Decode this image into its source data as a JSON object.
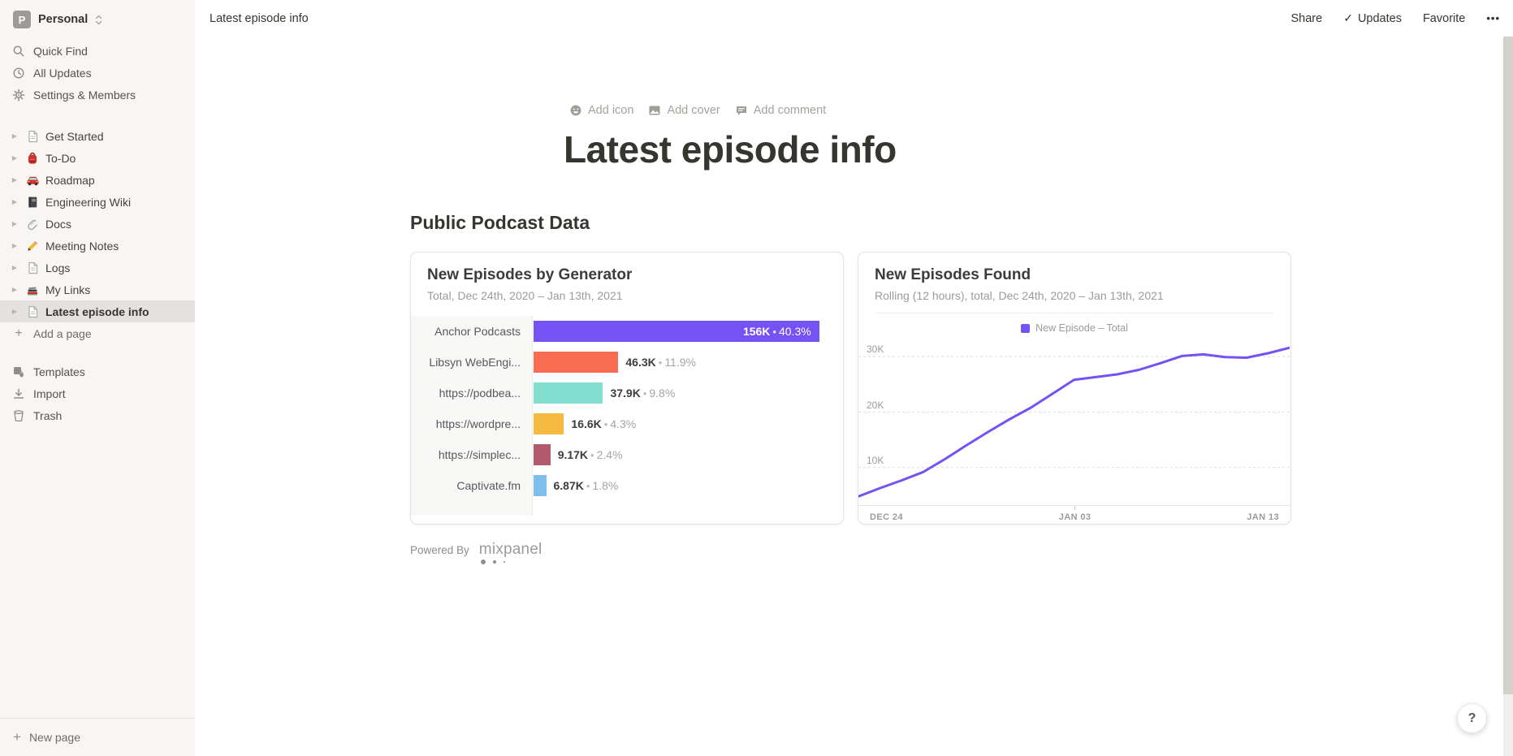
{
  "workspace": {
    "name": "Personal",
    "initial": "P"
  },
  "sidebar": {
    "top_items": [
      {
        "label": "Quick Find",
        "icon": "search-icon"
      },
      {
        "label": "All Updates",
        "icon": "clock-icon"
      },
      {
        "label": "Settings & Members",
        "icon": "gear-icon"
      }
    ],
    "pages": [
      {
        "label": "Get Started",
        "icon": "page-icon"
      },
      {
        "label": "To-Do",
        "icon": "backpack-icon"
      },
      {
        "label": "Roadmap",
        "icon": "car-icon"
      },
      {
        "label": "Engineering Wiki",
        "icon": "notebook-icon"
      },
      {
        "label": "Docs",
        "icon": "paperclip-icon"
      },
      {
        "label": "Meeting Notes",
        "icon": "pencil-icon"
      },
      {
        "label": "Logs",
        "icon": "page-icon"
      },
      {
        "label": "My Links",
        "icon": "books-icon"
      },
      {
        "label": "Latest episode info",
        "icon": "page-icon",
        "selected": true
      }
    ],
    "add_page_label": "Add a page",
    "bottom_items": [
      {
        "label": "Templates",
        "icon": "templates-icon"
      },
      {
        "label": "Import",
        "icon": "import-icon"
      },
      {
        "label": "Trash",
        "icon": "trash-icon"
      }
    ],
    "new_page_label": "New page"
  },
  "topbar": {
    "breadcrumb": "Latest episode info",
    "share_label": "Share",
    "updates_label": "Updates",
    "favorite_label": "Favorite",
    "more_label": "•••"
  },
  "page": {
    "add_icon_label": "Add icon",
    "add_cover_label": "Add cover",
    "add_comment_label": "Add comment",
    "title": "Latest episode info",
    "section_heading": "Public Podcast Data",
    "powered_by_label": "Powered By",
    "mixpanel_label": "mixpanel",
    "help_label": "?"
  },
  "chart_data": [
    {
      "type": "bar",
      "orientation": "horizontal",
      "title": "New Episodes by Generator",
      "subtitle": "Total, Dec 24th, 2020 – Jan 13th, 2021",
      "categories": [
        "Anchor Podcasts",
        "Libsyn WebEngi...",
        "https://podbea...",
        "https://wordpre...",
        "https://simplec...",
        "Captivate.fm"
      ],
      "values": [
        156000,
        46300,
        37900,
        16600,
        9170,
        6870
      ],
      "value_labels": [
        "156K",
        "46.3K",
        "37.9K",
        "16.6K",
        "9.17K",
        "6.87K"
      ],
      "percent_labels": [
        "40.3%",
        "11.9%",
        "9.8%",
        "4.3%",
        "2.4%",
        "1.8%"
      ],
      "colors": [
        "#7452F4",
        "#F86C52",
        "#82DECE",
        "#F6BA43",
        "#B25B6E",
        "#7CBFEE"
      ],
      "xlim": [
        0,
        169000
      ],
      "grid": false
    },
    {
      "type": "line",
      "title": "New Episodes Found",
      "subtitle": "Rolling (12 hours), total, Dec 24th, 2020 – Jan 13th, 2021",
      "legend": [
        {
          "label": "New Episode – Total",
          "color": "#7452F4"
        }
      ],
      "legend_position": "top-center",
      "color": "#7452F4",
      "x_range": [
        "Dec 24th, 2020",
        "Jan 13th, 2021"
      ],
      "x_tick_labels": [
        "DEC 24",
        "JAN 03",
        "JAN 13"
      ],
      "values": [
        4800,
        6300,
        7700,
        9200,
        11500,
        14000,
        16400,
        18700,
        20800,
        23300,
        25800,
        26300,
        26800,
        27600,
        28800,
        30100,
        30400,
        29900,
        29800,
        30600,
        31600
      ],
      "y_axis": {
        "ticks": [
          10000,
          20000,
          30000
        ],
        "tick_labels": [
          "10K",
          "20K",
          "30K"
        ],
        "plot_min": 3250,
        "plot_max": 32500
      },
      "grid": "dashed-horizontal"
    }
  ]
}
